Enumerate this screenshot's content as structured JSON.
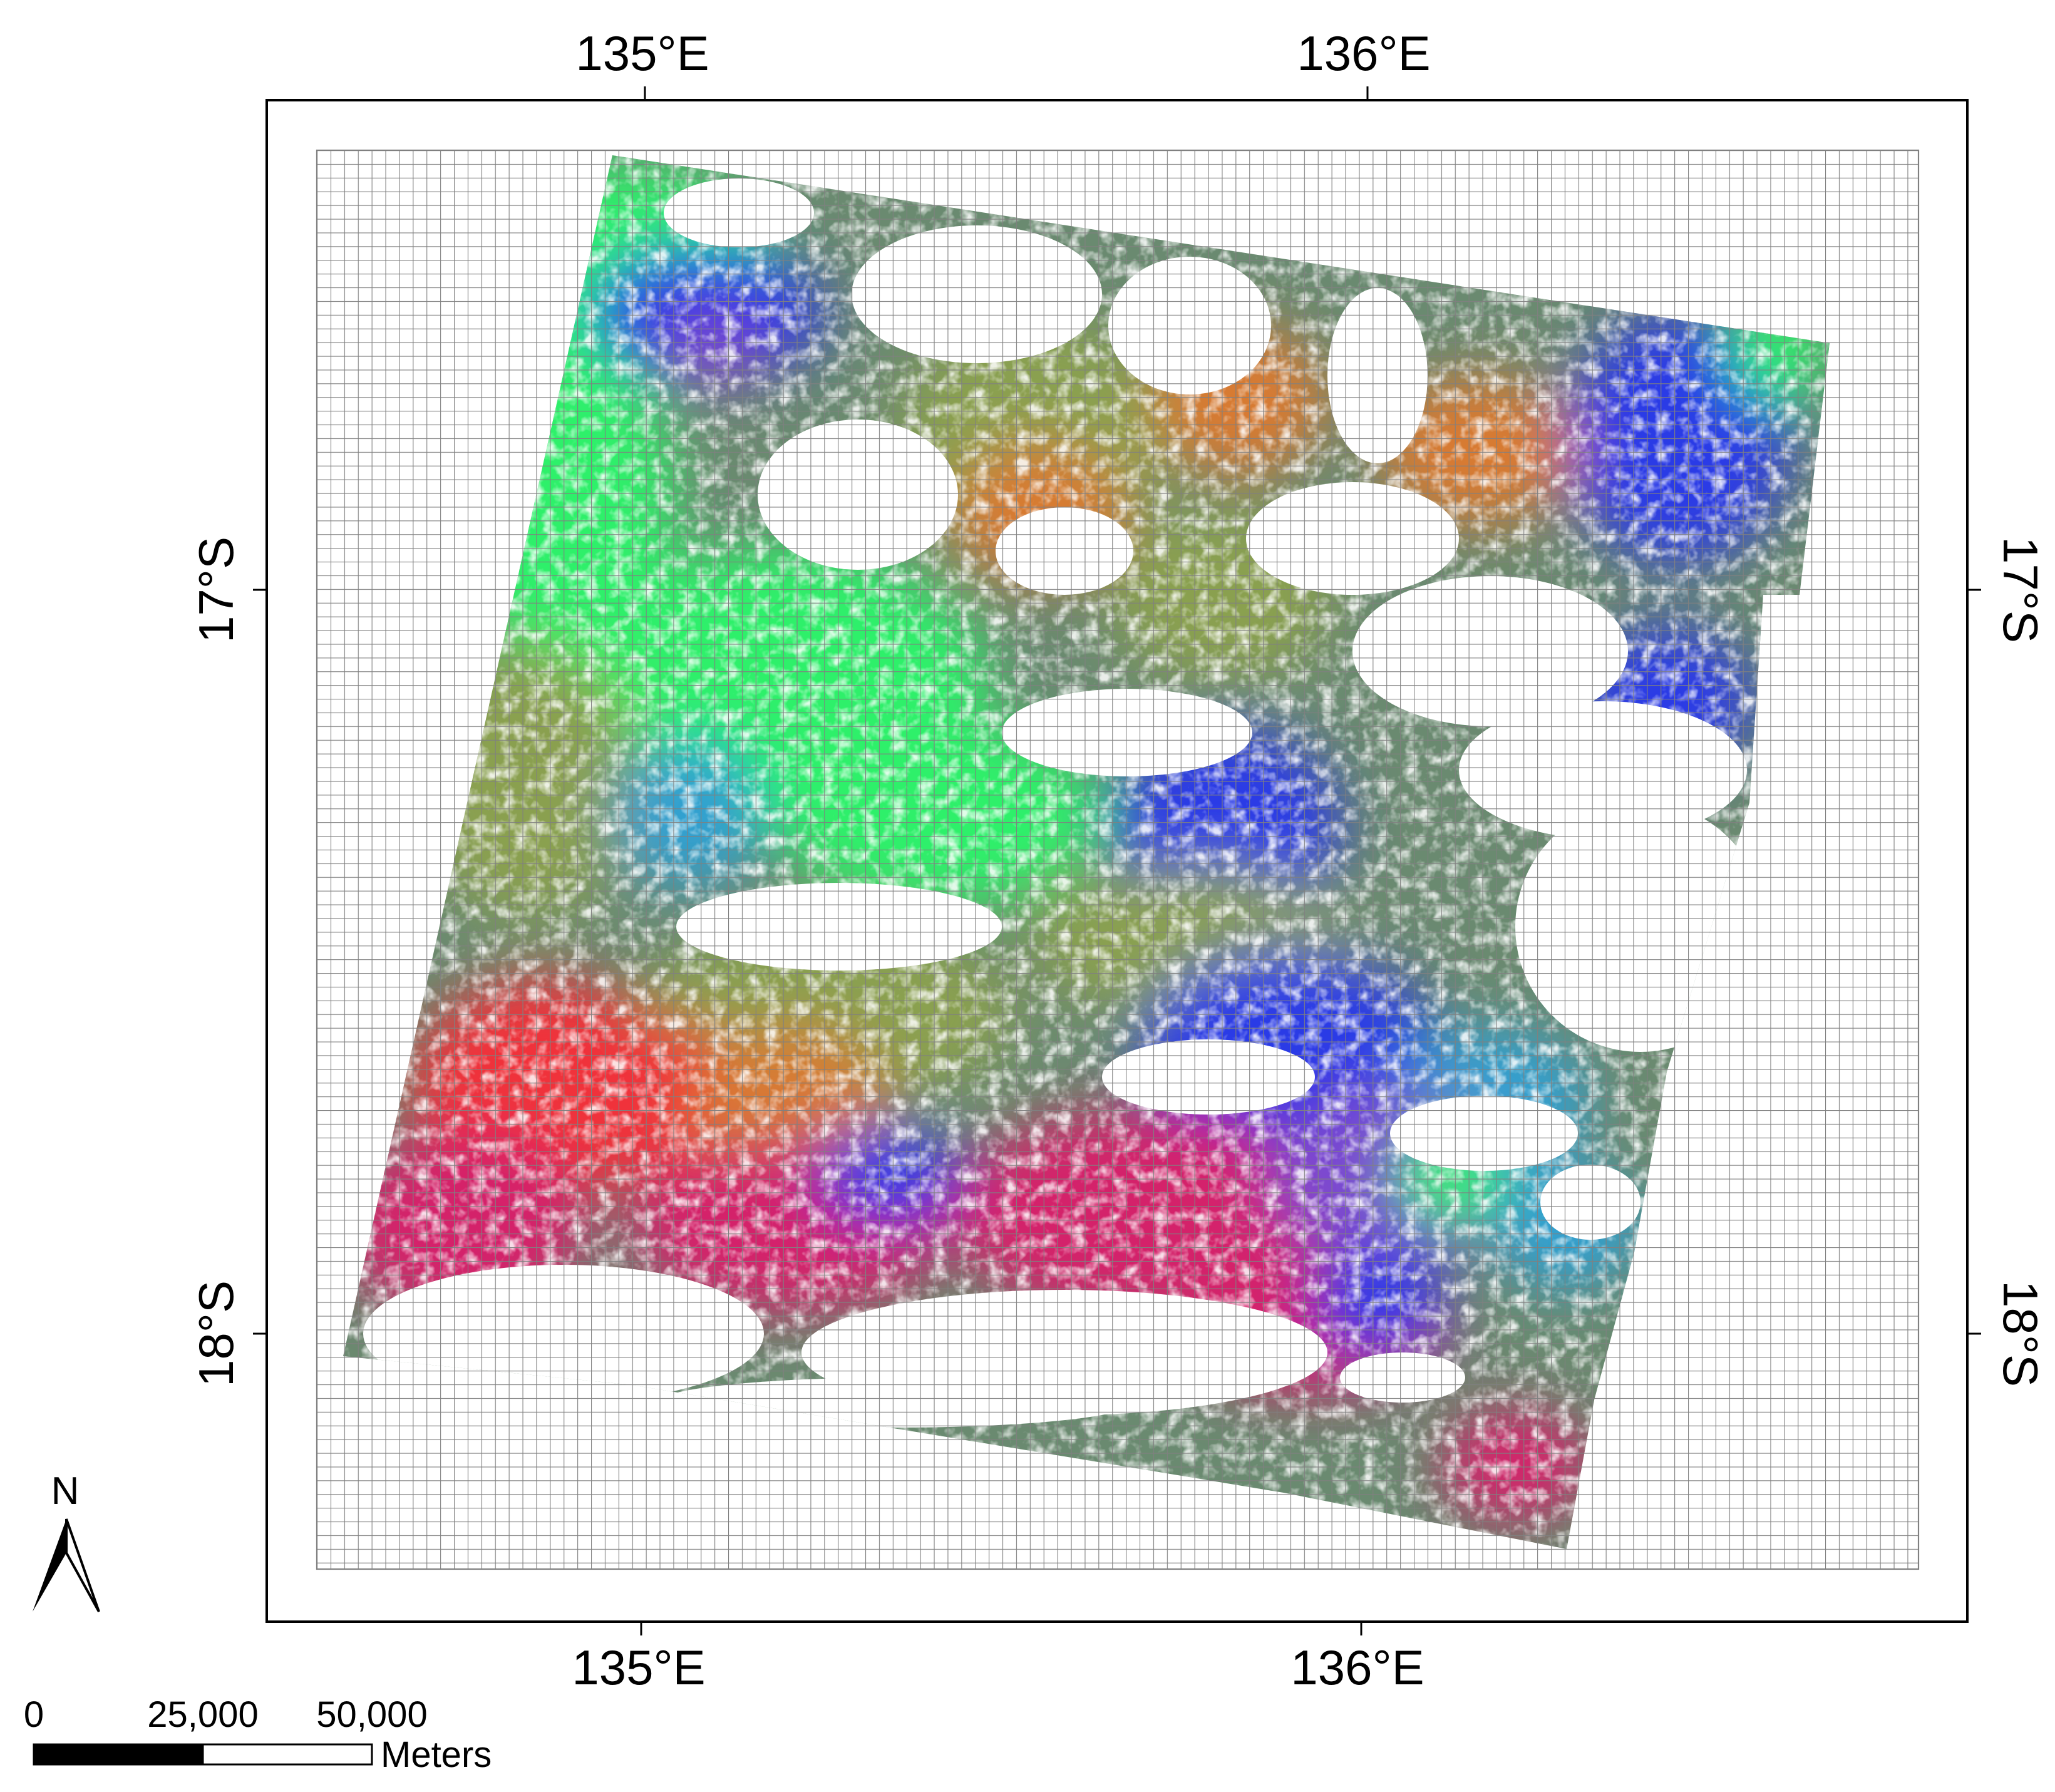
{
  "map": {
    "graticule": {
      "top_labels": [
        "135°E",
        "136°E"
      ],
      "bottom_labels": [
        "135°E",
        "136°E"
      ],
      "left_labels": [
        "17°S",
        "18°S"
      ],
      "right_labels": [
        "17°S",
        "18°S"
      ]
    },
    "north_arrow": {
      "label": "N"
    },
    "scale_bar": {
      "tick_labels": [
        "0",
        "25,000",
        "50,000"
      ],
      "unit": "Meters"
    },
    "image_composite": {
      "colors": {
        "red": "#f0303a",
        "magenta": "#d4206a",
        "blue": "#2a3ae6",
        "green": "#2ef06a",
        "olive": "#8aa050",
        "orange": "#d87a30",
        "cyan": "#30a0d0",
        "purple": "#7a4ad0"
      }
    },
    "grid_color": "#808080",
    "frame_color": "#000000"
  }
}
